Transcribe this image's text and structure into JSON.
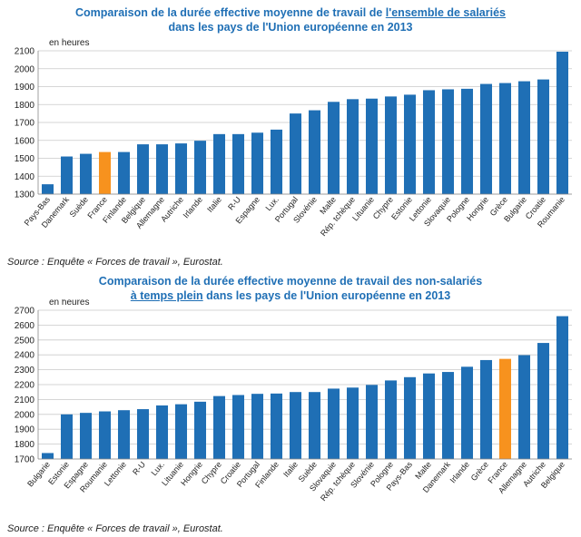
{
  "chart1": {
    "title_line1_a": "Comparaison de la durée effective moyenne de travail de ",
    "title_line1_b": "l'ensemble de salariés",
    "title_line2": "dans les pays de l'Union européenne en 2013",
    "unit": "en heures",
    "source": "Source : Enquête « Forces de travail », Eurostat."
  },
  "chart2": {
    "title_line1": "Comparaison de la durée effective moyenne de travail des non-salariés",
    "title_line2_a": "à temps plein",
    "title_line2_b": " dans les pays de l'Union européenne en 2013",
    "unit": "en heures",
    "source": "Source : Enquête « Forces de travail », Eurostat."
  },
  "colors": {
    "bar": "#1f6fb5",
    "highlight": "#f7921e",
    "title": "#1f6fb5"
  },
  "chart_data": [
    {
      "type": "bar",
      "ylim": [
        1300,
        2100
      ],
      "yticks": [
        1300,
        1400,
        1500,
        1600,
        1700,
        1800,
        1900,
        2000,
        2100
      ],
      "grid": true,
      "highlight": "France",
      "categories": [
        "Pays-Bas",
        "Danemark",
        "Suède",
        "France",
        "Finlande",
        "Belgique",
        "Allemagne",
        "Autriche",
        "Irlande",
        "Italie",
        "R-U",
        "Espagne",
        "Lux.",
        "Portugal",
        "Slovénie",
        "Malte",
        "Rép. tchèque",
        "Lituanie",
        "Chypre",
        "Estonie",
        "Lettonie",
        "Slovaquie",
        "Pologne",
        "Hongrie",
        "Grèce",
        "Bulgarie",
        "Croatie",
        "Roumanie"
      ],
      "values": [
        1355,
        1510,
        1525,
        1535,
        1535,
        1578,
        1578,
        1583,
        1598,
        1635,
        1635,
        1643,
        1660,
        1750,
        1768,
        1815,
        1830,
        1833,
        1845,
        1855,
        1880,
        1885,
        1888,
        1915,
        1920,
        1930,
        1940,
        2095
      ]
    },
    {
      "type": "bar",
      "ylim": [
        1700,
        2700
      ],
      "yticks": [
        1700,
        1800,
        1900,
        2000,
        2100,
        2200,
        2300,
        2400,
        2500,
        2600,
        2700
      ],
      "grid": true,
      "highlight": "France",
      "categories": [
        "Bulgarie",
        "Estonie",
        "Espagne",
        "Roumanie",
        "Lettonie",
        "R-U",
        "Lux.",
        "Lituanie",
        "Hongrie",
        "Chypre",
        "Croatie",
        "Portugal",
        "Finlande",
        "Italie",
        "Suède",
        "Slovaquie",
        "Rép. tchèque",
        "Slovénie",
        "Pologne",
        "Pays-Bas",
        "Malte",
        "Danemark",
        "Irlande",
        "Grèce",
        "France",
        "Allemagne",
        "Autriche",
        "Belgique"
      ],
      "values": [
        1740,
        2000,
        2010,
        2020,
        2028,
        2035,
        2060,
        2068,
        2085,
        2123,
        2130,
        2138,
        2140,
        2150,
        2150,
        2173,
        2180,
        2198,
        2228,
        2250,
        2275,
        2285,
        2320,
        2365,
        2373,
        2398,
        2480,
        2660
      ]
    }
  ]
}
